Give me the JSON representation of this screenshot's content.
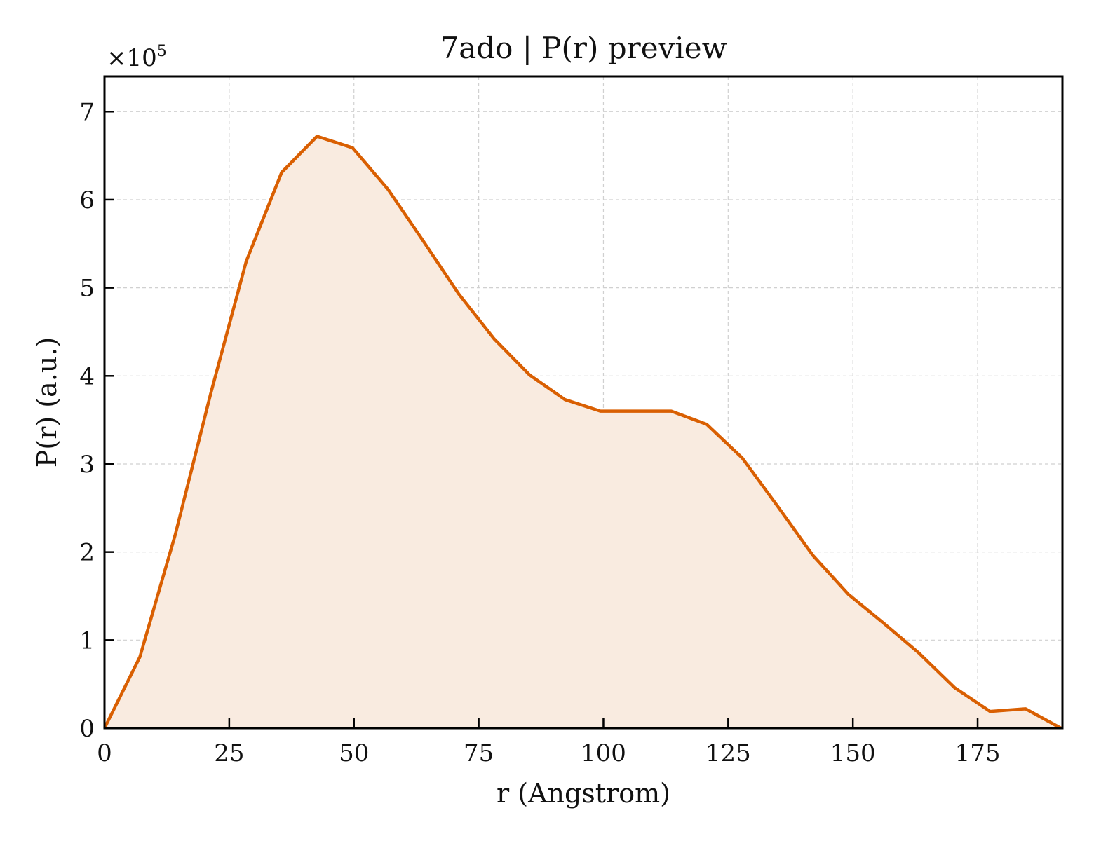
{
  "chart_data": {
    "type": "area",
    "title": "7ado | P(r) preview",
    "xlabel": "r (Angstrom)",
    "ylabel": "P(r) (a.u.)",
    "y_multiplier_base": "×10",
    "y_multiplier_exp": "5",
    "xlim": [
      0,
      192
    ],
    "ylim": [
      0,
      7.4
    ],
    "x_ticks": [
      0,
      25,
      50,
      75,
      100,
      125,
      150,
      175
    ],
    "y_ticks": [
      0,
      1,
      2,
      3,
      4,
      5,
      6,
      7
    ],
    "grid": true,
    "series": [
      {
        "x": [
          0,
          7.1,
          14.2,
          21.3,
          28.4,
          35.5,
          42.6,
          49.7,
          56.8,
          63.9,
          71.0,
          78.1,
          85.2,
          92.3,
          99.4,
          106.5,
          113.6,
          120.7,
          127.8,
          134.9,
          142.0,
          149.1,
          156.2,
          163.3,
          170.4,
          177.5,
          184.6,
          191.7
        ],
        "y": [
          0,
          0.81,
          2.2,
          3.8,
          5.3,
          6.31,
          6.72,
          6.59,
          6.12,
          5.53,
          4.93,
          4.42,
          4.01,
          3.73,
          3.6,
          3.6,
          3.6,
          3.45,
          3.07,
          2.52,
          1.96,
          1.52,
          1.19,
          0.85,
          0.46,
          0.19,
          0.22,
          0.0
        ]
      }
    ],
    "line_color": "#d95f02",
    "fill_color": "#f9ebe0"
  }
}
